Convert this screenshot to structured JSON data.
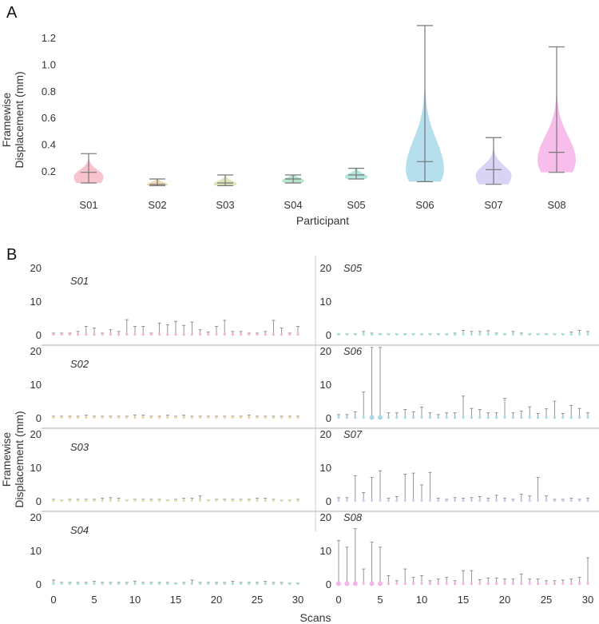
{
  "chart_data": [
    {
      "type": "violin",
      "panel_label": "A",
      "xlabel": "Participant",
      "ylabel": [
        "Framewise",
        "Displacement (mm)"
      ],
      "ylim": [
        0.05,
        1.32
      ],
      "yticks": [
        "0.2",
        "0.4",
        "0.6",
        "0.8",
        "1.0",
        "1.2"
      ],
      "categories": [
        "S01",
        "S02",
        "S03",
        "S04",
        "S05",
        "S06",
        "S07",
        "S08"
      ],
      "min": [
        0.11,
        0.09,
        0.09,
        0.11,
        0.14,
        0.12,
        0.1,
        0.19
      ],
      "median": [
        0.19,
        0.1,
        0.11,
        0.14,
        0.17,
        0.27,
        0.21,
        0.34
      ],
      "max": [
        0.33,
        0.14,
        0.17,
        0.17,
        0.22,
        1.29,
        0.45,
        1.13
      ],
      "colors": [
        "#f7b8c4",
        "#efd2a6",
        "#dbe2ad",
        "#a9e2c4",
        "#a9e3d9",
        "#a8d9ea",
        "#d2cbf3",
        "#f6b3e8"
      ]
    },
    {
      "type": "whisker-grid",
      "panel_label": "B",
      "xlabel": "Scans",
      "ylabel": [
        "Framewise",
        "Displacement (mm)"
      ],
      "xticks": [
        "0",
        "5",
        "10",
        "15",
        "20",
        "25",
        "30"
      ],
      "yticks": [
        "0",
        "10",
        "20"
      ],
      "ylim": [
        0,
        22
      ],
      "series": [
        {
          "name": "S01",
          "max": [
            0.5,
            0.5,
            0.5,
            1,
            2.5,
            2,
            0.5,
            1.5,
            1,
            4.5,
            2.5,
            2.5,
            0.5,
            3.5,
            3,
            4,
            2.8,
            3.8,
            1.5,
            0.8,
            2.5,
            4.3,
            1,
            1,
            0.5,
            0.5,
            1,
            4.3,
            2,
            0.5,
            2.5
          ]
        },
        {
          "name": "S02",
          "max": [
            0.5,
            0.5,
            0.5,
            0.5,
            0.8,
            0.5,
            0.5,
            0.5,
            0.5,
            0.5,
            0.8,
            0.8,
            0.5,
            0.5,
            0.8,
            0.5,
            0.8,
            0.5,
            0.5,
            0.5,
            0.5,
            0.5,
            0.5,
            0.5,
            0.8,
            0.5,
            0.5,
            0.5,
            0.5,
            0.5,
            0.5
          ]
        },
        {
          "name": "S03",
          "max": [
            0.5,
            0.3,
            0.5,
            0.5,
            0.5,
            0.5,
            0.8,
            1,
            0.8,
            0.3,
            0.5,
            0.5,
            0.5,
            0.5,
            0.3,
            0.5,
            0.8,
            0.8,
            1.5,
            0.3,
            0.5,
            0.5,
            0.5,
            0.5,
            0.5,
            0.8,
            0.8,
            0.5,
            0.3,
            0.3,
            0.5
          ]
        },
        {
          "name": "S04",
          "max": [
            1.2,
            0.5,
            0.5,
            0.5,
            0.5,
            0.8,
            0.5,
            0.5,
            0.5,
            0.5,
            0.8,
            0.5,
            0.5,
            0.5,
            0.5,
            0.3,
            0.5,
            1.2,
            0.5,
            0.5,
            0.5,
            0.5,
            0.8,
            0.5,
            0.5,
            0.5,
            0.8,
            0.5,
            0.5,
            0.3,
            0.3
          ]
        },
        {
          "name": "S05",
          "max": [
            0.3,
            0.3,
            0.3,
            1,
            0.5,
            0.3,
            0.3,
            0.3,
            0.3,
            0.3,
            0.3,
            0.3,
            0.3,
            0.3,
            0.5,
            1.3,
            1,
            1,
            1.2,
            0.5,
            0.3,
            1,
            0.5,
            0.3,
            0.3,
            0.3,
            0.3,
            0.3,
            0.8,
            1.3,
            1
          ]
        },
        {
          "name": "S06",
          "max": [
            1,
            1,
            1.8,
            7.7,
            21,
            21,
            1.5,
            1.5,
            2.5,
            1.8,
            3.2,
            1.5,
            1,
            1.5,
            1.5,
            6.5,
            2.8,
            2.5,
            1.5,
            1.5,
            5.8,
            1.5,
            2,
            3.3,
            1.3,
            2.7,
            5,
            1.3,
            3.7,
            2.8,
            1.5
          ]
        },
        {
          "name": "S07",
          "max": [
            1,
            1,
            7.5,
            2.5,
            7,
            9,
            0.8,
            1.3,
            8,
            8.3,
            4.8,
            8.5,
            0.8,
            0.5,
            1,
            0.8,
            1,
            1.3,
            0.8,
            1.7,
            0.8,
            0.5,
            2,
            1.5,
            7,
            1.5,
            0.5,
            0.5,
            0.8,
            0.5,
            0.8
          ]
        },
        {
          "name": "S08",
          "max": [
            13,
            11,
            16.5,
            4.5,
            12.5,
            11,
            2.5,
            1,
            4.5,
            2,
            2.5,
            1,
            1.5,
            2,
            1,
            4,
            4,
            1.3,
            1.8,
            1.8,
            1.5,
            1.5,
            3,
            1.5,
            1.5,
            1,
            1,
            1.2,
            1.5,
            2,
            7.8
          ]
        }
      ]
    }
  ]
}
